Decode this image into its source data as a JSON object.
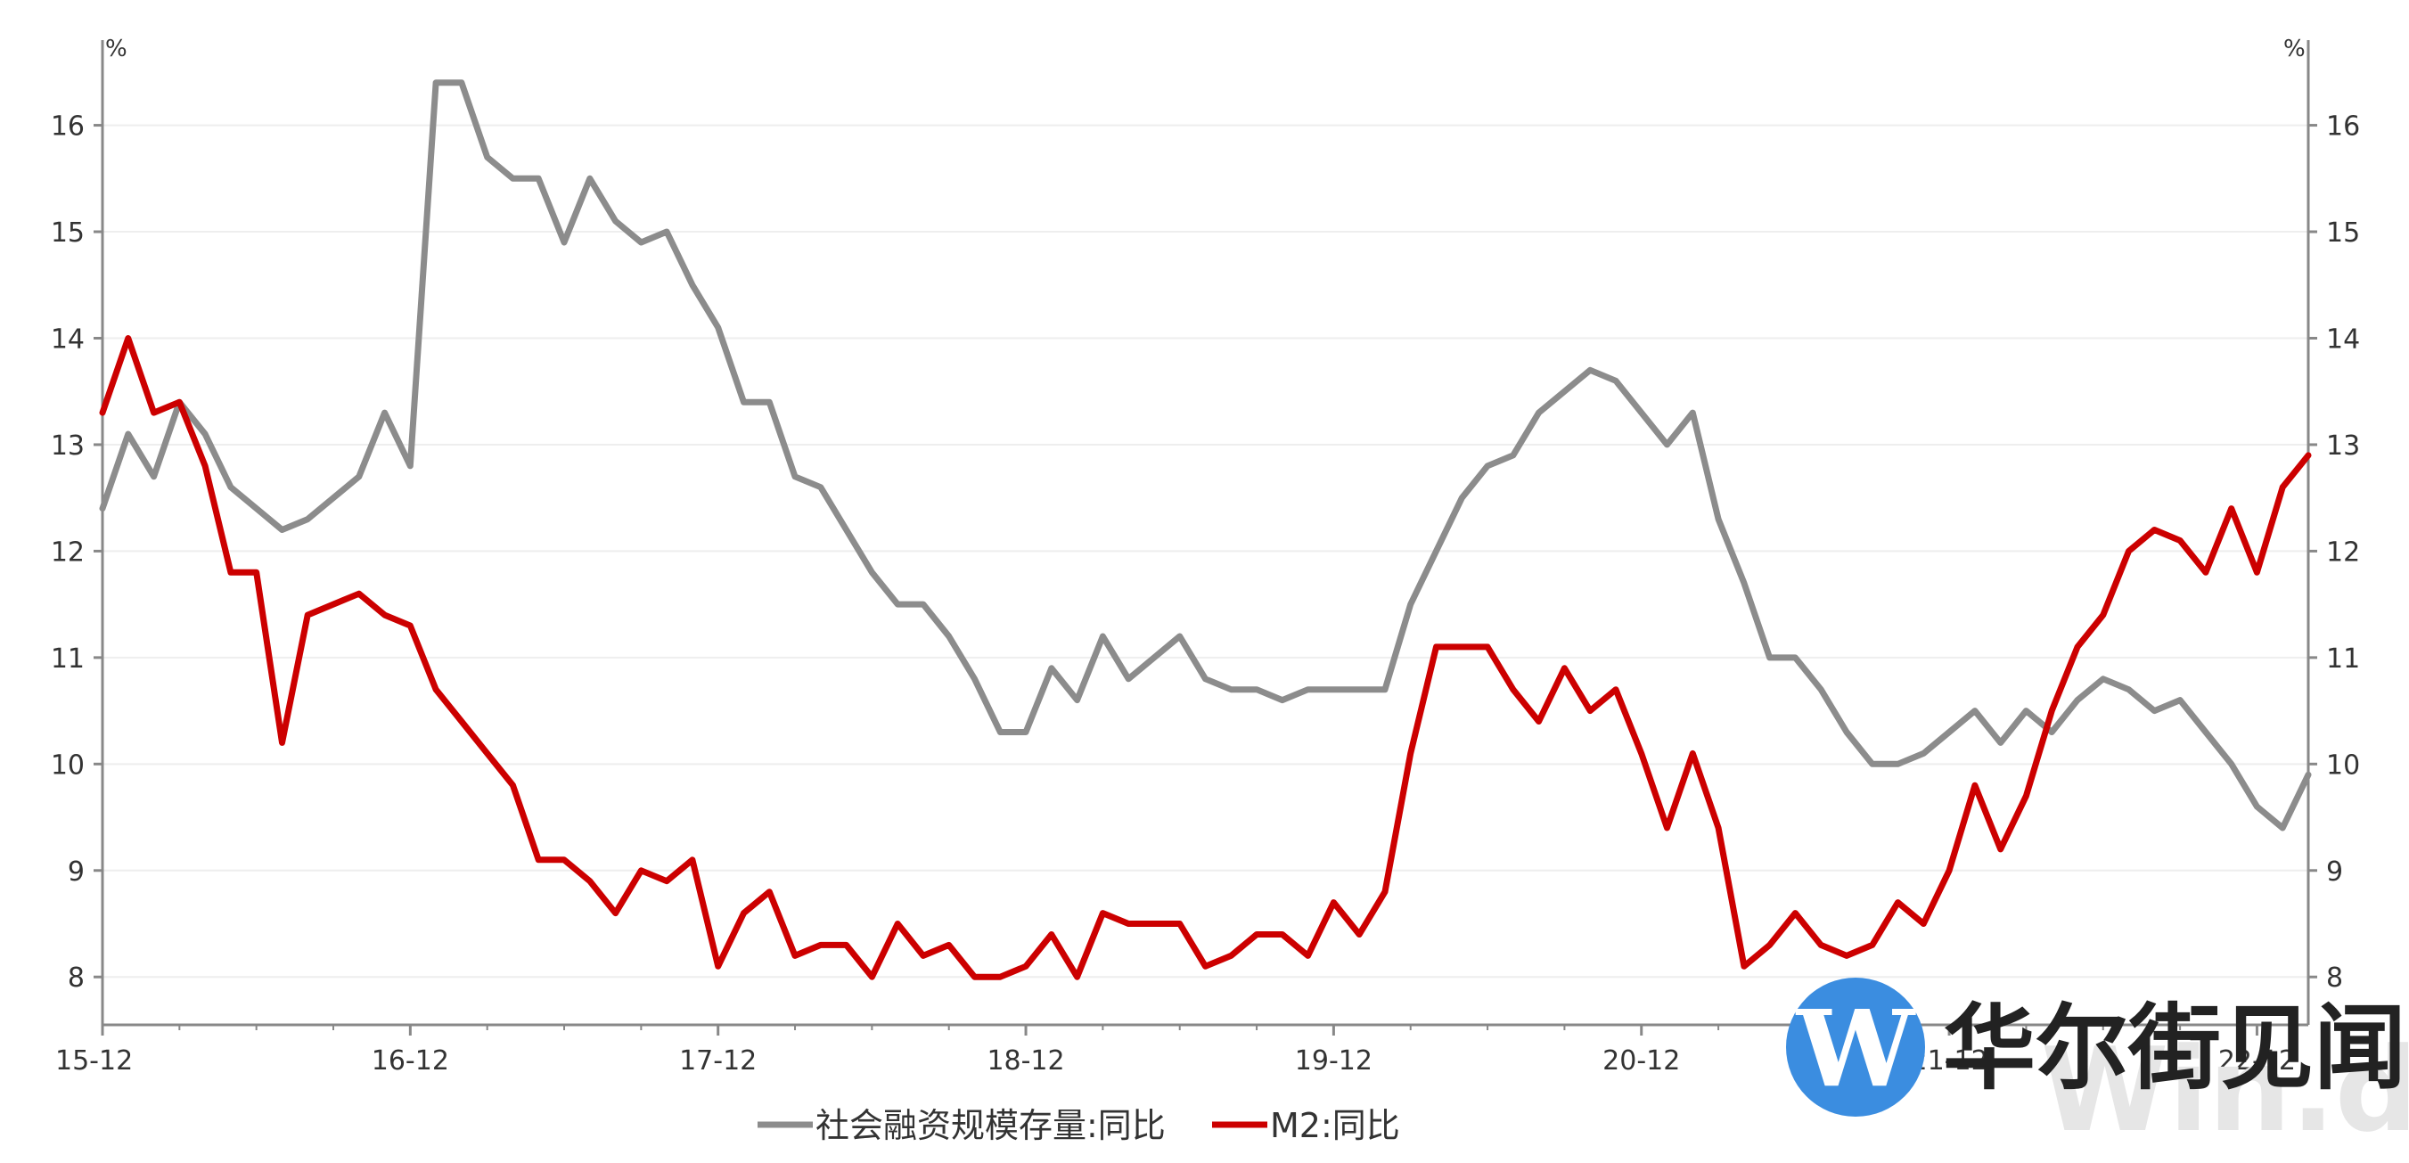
{
  "chart_data": {
    "type": "line",
    "title": "",
    "left_axis_unit": "%",
    "right_axis_unit": "%",
    "ylim": [
      7.55,
      16.8
    ],
    "y_ticks": [
      8,
      9,
      10,
      11,
      12,
      13,
      14,
      15,
      16
    ],
    "x_tick_labels": [
      "15-12",
      "16-12",
      "17-12",
      "18-12",
      "19-12",
      "20-12",
      "21-12",
      "22-12"
    ],
    "grid": "horizontal light",
    "legend_position": "bottom-center",
    "series": [
      {
        "name": "社会融资规模存量:同比",
        "color": "#8c8c8c",
        "values": [
          12.4,
          13.1,
          12.7,
          13.4,
          13.1,
          12.6,
          12.4,
          12.2,
          12.3,
          12.5,
          12.7,
          13.3,
          12.8,
          16.4,
          16.4,
          15.7,
          15.5,
          15.5,
          14.9,
          15.5,
          15.1,
          14.9,
          15.0,
          14.5,
          14.1,
          13.4,
          13.4,
          12.7,
          12.6,
          12.2,
          11.8,
          11.5,
          11.5,
          11.2,
          10.8,
          10.3,
          10.3,
          10.9,
          10.6,
          11.2,
          10.8,
          11.0,
          11.2,
          10.8,
          10.7,
          10.7,
          10.6,
          10.7,
          10.7,
          10.7,
          10.7,
          11.5,
          12.0,
          12.5,
          12.8,
          12.9,
          13.3,
          13.5,
          13.7,
          13.6,
          13.3,
          13.0,
          13.3,
          12.3,
          11.7,
          11.0,
          11.0,
          10.7,
          10.3,
          10.0,
          10.0,
          10.1,
          10.3,
          10.5,
          10.2,
          10.5,
          10.3,
          10.6,
          10.8,
          10.7,
          10.5,
          10.6,
          10.3,
          10.0,
          9.6,
          9.4,
          9.9
        ]
      },
      {
        "name": "M2:同比",
        "color": "#cc0000",
        "values": [
          13.3,
          14.0,
          13.3,
          13.4,
          12.8,
          11.8,
          11.8,
          10.2,
          11.4,
          11.5,
          11.6,
          11.4,
          11.3,
          10.7,
          10.4,
          10.1,
          9.8,
          9.1,
          9.1,
          8.9,
          8.6,
          9.0,
          8.9,
          9.1,
          8.1,
          8.6,
          8.8,
          8.2,
          8.3,
          8.3,
          8.0,
          8.5,
          8.2,
          8.3,
          8.0,
          8.0,
          8.1,
          8.4,
          8.0,
          8.6,
          8.5,
          8.5,
          8.5,
          8.1,
          8.2,
          8.4,
          8.4,
          8.2,
          8.7,
          8.4,
          8.8,
          10.1,
          11.1,
          11.1,
          11.1,
          10.7,
          10.4,
          10.9,
          10.5,
          10.7,
          10.1,
          9.4,
          10.1,
          9.4,
          8.1,
          8.3,
          8.6,
          8.3,
          8.2,
          8.3,
          8.7,
          8.5,
          9.0,
          9.8,
          9.2,
          9.7,
          10.5,
          11.1,
          11.4,
          12.0,
          12.2,
          12.1,
          11.8,
          12.4,
          11.8,
          12.6,
          12.9
        ]
      }
    ]
  },
  "watermark": {
    "brand_text": "华尔街见闻",
    "logo_letter": "W",
    "faint_text": "Win.d",
    "logo_color": "#3b8de0"
  }
}
